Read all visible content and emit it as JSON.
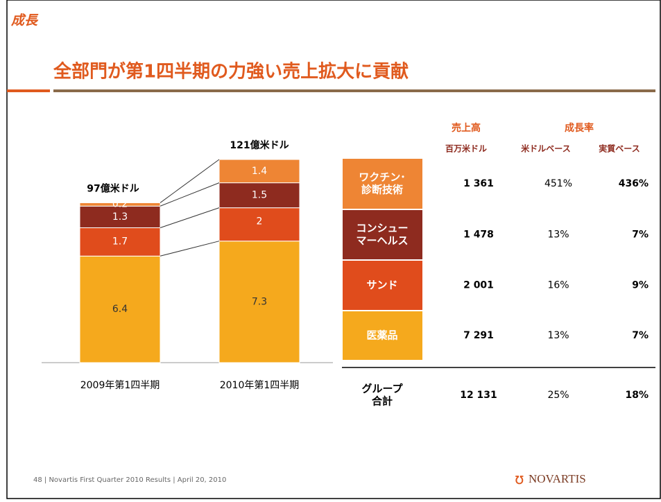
{
  "header": {
    "section": "成長",
    "title": "全部門が第1四半期の力強い売上拡大に貢献"
  },
  "chart_data": {
    "type": "stacked_bar",
    "categories": [
      "2009年第1四半期",
      "2010年第1四半期"
    ],
    "series": [
      {
        "color": "#f5a91d",
        "values": [
          6.4,
          7.3
        ]
      },
      {
        "color": "#e04c1c",
        "values": [
          1.7,
          2.0
        ]
      },
      {
        "color": "#8e2b1f",
        "values": [
          1.3,
          1.5
        ]
      },
      {
        "color": "#ee8534",
        "values": [
          0.2,
          1.4
        ]
      }
    ],
    "annotations": [
      "97億米ドル",
      "121億米ドル"
    ]
  },
  "table": {
    "group_headers": [
      "売上高",
      "成長率"
    ],
    "sub_headers": [
      "百万米ドル",
      "米ドルベース",
      "実質ベース"
    ],
    "rows": [
      {
        "label": [
          "ワクチン･",
          "診断技術"
        ],
        "color": "#ee8534",
        "cells": [
          "1 361",
          "451%",
          "436%"
        ]
      },
      {
        "label": [
          "コンシュー",
          "マーヘルス"
        ],
        "color": "#8e2b1f",
        "cells": [
          "1 478",
          "13%",
          "7%"
        ]
      },
      {
        "label": [
          "サンド"
        ],
        "color": "#e04c1c",
        "cells": [
          "2 001",
          "16%",
          "9%"
        ]
      },
      {
        "label": [
          "医薬品"
        ],
        "color": "#f5a91d",
        "cells": [
          "7 291",
          "13%",
          "7%"
        ]
      },
      {
        "label": [
          "グループ",
          "合計"
        ],
        "cells": [
          "12 131",
          "25%",
          "18%"
        ]
      }
    ]
  },
  "footer": {
    "text": "48 |  Novartis First Quarter 2010 Results  |  April 20, 2010",
    "logo": "NOVARTIS"
  }
}
